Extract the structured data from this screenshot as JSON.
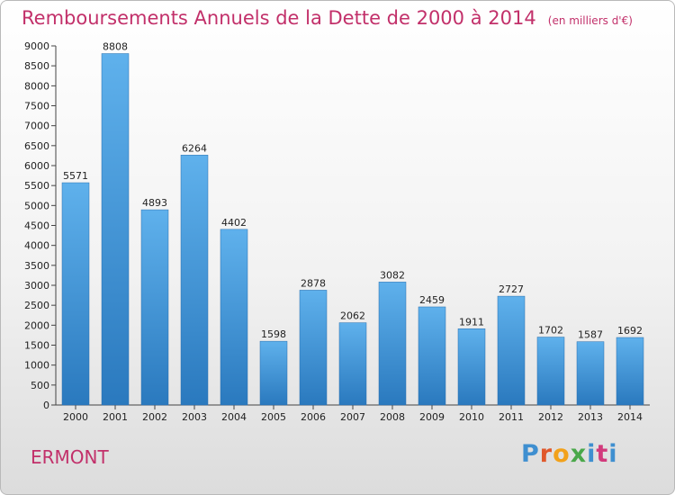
{
  "header": {
    "title": "Remboursements Annuels de la Dette de 2000 à 2014",
    "subtitle": "(en milliers d'€)"
  },
  "footer": {
    "city": "ERMONT",
    "brand": "Proxiti"
  },
  "chart_data": {
    "type": "bar",
    "title": "Remboursements Annuels de la Dette de 2000 à 2014",
    "subtitle": "(en milliers d'€)",
    "xlabel": "",
    "ylabel": "",
    "categories": [
      "2000",
      "2001",
      "2002",
      "2003",
      "2004",
      "2005",
      "2006",
      "2007",
      "2008",
      "2009",
      "2010",
      "2011",
      "2012",
      "2013",
      "2014"
    ],
    "values": [
      5571,
      8808,
      4893,
      6264,
      4402,
      1598,
      2878,
      2062,
      3082,
      2459,
      1911,
      2727,
      1702,
      1587,
      1692
    ],
    "ylim": [
      0,
      9000
    ],
    "yticks": [
      0,
      500,
      1000,
      1500,
      2000,
      2500,
      3000,
      3500,
      4000,
      4500,
      5000,
      5500,
      6000,
      6500,
      7000,
      7500,
      8000,
      8500,
      9000
    ],
    "data_labels": true,
    "grid": false,
    "legend": "none",
    "colors": {
      "bar_top": "#5fb1ec",
      "bar_bottom": "#2a79be",
      "title": "#c2306a"
    }
  }
}
